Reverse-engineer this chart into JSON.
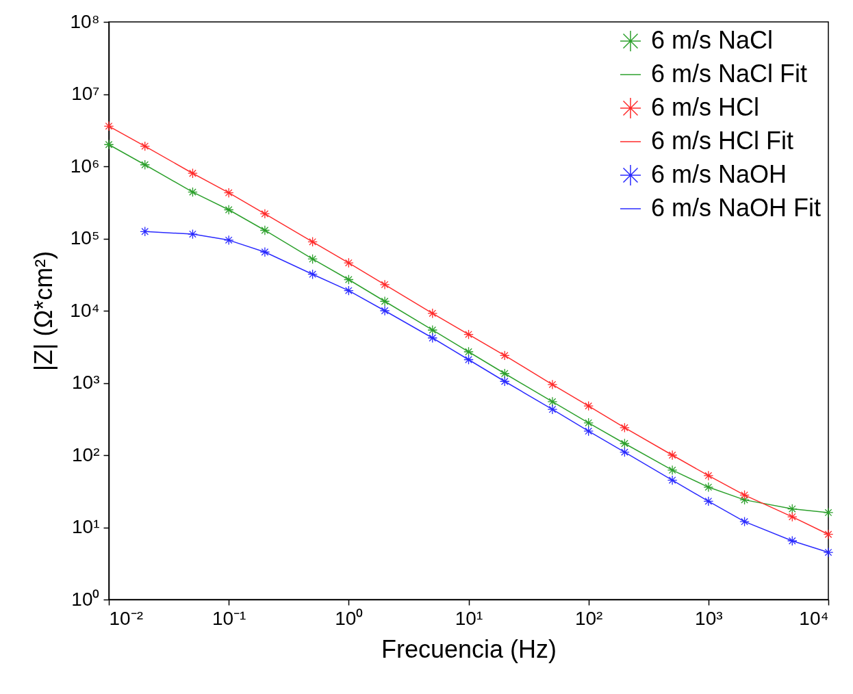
{
  "chart_data": {
    "type": "scatter",
    "xlabel": "Frecuencia (Hz)",
    "ylabel": "|Z| (Ω*cm²)",
    "log": "xy",
    "grid": false,
    "legend": "top right",
    "marker": "cross",
    "xlim": [
      0.01,
      10000
    ],
    "ylim": [
      1,
      100000000
    ],
    "xticks": [
      {
        "value": 0.01,
        "label": "10⁻²"
      },
      {
        "value": 0.1,
        "label": "10⁻¹"
      },
      {
        "value": 1,
        "label": "10⁰"
      },
      {
        "value": 10,
        "label": "10¹"
      },
      {
        "value": 100,
        "label": "10²"
      },
      {
        "value": 1000,
        "label": "10³"
      },
      {
        "value": 10000,
        "label": "10⁴"
      }
    ],
    "yticks": [
      {
        "value": 1,
        "label": "10⁰"
      },
      {
        "value": 10,
        "label": "10¹"
      },
      {
        "value": 100,
        "label": "10²"
      },
      {
        "value": 1000,
        "label": "10³"
      },
      {
        "value": 10000,
        "label": "10⁴"
      },
      {
        "value": 100000,
        "label": "10⁵"
      },
      {
        "value": 1000000,
        "label": "10⁶"
      },
      {
        "value": 10000000,
        "label": "10⁷"
      },
      {
        "value": 100000000,
        "label": "10⁸"
      }
    ],
    "x": [
      0.01,
      0.02,
      0.05,
      0.1,
      0.2,
      0.5,
      1,
      2,
      5,
      10,
      20,
      50,
      100,
      200,
      500,
      1000,
      2000,
      5000,
      10000
    ],
    "series": [
      {
        "name": "6 m/s NaCl",
        "color": "#2ca02c",
        "values": [
          2000000,
          1050000,
          440000,
          250000,
          130000,
          52000,
          27000,
          13500,
          5400,
          2700,
          1350,
          550,
          280,
          145,
          62,
          36,
          24,
          18,
          16
        ]
      },
      {
        "name": "6 m/s NaCl Fit",
        "type": "line",
        "marker": "none",
        "color": "#2ca02c",
        "values": [
          2000000,
          1050000,
          440000,
          250000,
          130000,
          52000,
          27000,
          13500,
          5400,
          2700,
          1350,
          550,
          280,
          145,
          62,
          36,
          24,
          18,
          16
        ]
      },
      {
        "name": "6 m/s HCl",
        "color": "#ff2a2a",
        "values": [
          3600000,
          1900000,
          800000,
          430000,
          220000,
          90000,
          46000,
          23000,
          9200,
          4700,
          2400,
          950,
          480,
          240,
          100,
          52,
          28,
          14,
          8
        ]
      },
      {
        "name": "6 m/s HCl Fit",
        "type": "line",
        "marker": "none",
        "color": "#ff2a2a",
        "values": [
          3600000,
          1900000,
          800000,
          430000,
          220000,
          90000,
          46000,
          23000,
          9200,
          4700,
          2400,
          950,
          480,
          240,
          100,
          52,
          28,
          14,
          8
        ]
      },
      {
        "name": "6 m/s NaOH",
        "color": "#2a2aff",
        "values": [
          null,
          125000,
          115000,
          95000,
          65000,
          32000,
          19000,
          10000,
          4200,
          2100,
          1050,
          430,
          215,
          110,
          45,
          23,
          12,
          6.5,
          4.5
        ]
      },
      {
        "name": "6 m/s NaOH Fit",
        "type": "line",
        "marker": "none",
        "color": "#2a2aff",
        "values": [
          null,
          125000,
          115000,
          95000,
          65000,
          32000,
          19000,
          10000,
          4200,
          2100,
          1050,
          430,
          215,
          110,
          45,
          23,
          12,
          6.5,
          4.5
        ]
      }
    ]
  }
}
